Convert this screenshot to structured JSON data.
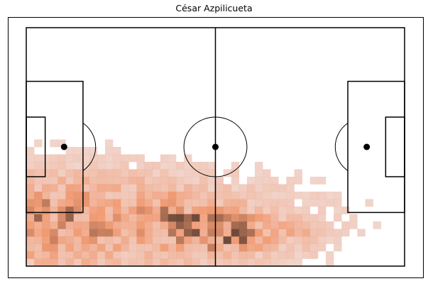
{
  "chart_data": {
    "type": "heatmap",
    "title": "César Azpilicueta",
    "xlabel": "",
    "ylabel": "",
    "grid": false,
    "legend": "none",
    "pitch": {
      "length": 120,
      "width": 80,
      "bins": [
        48,
        32
      ]
    },
    "colors": {
      "low": "#e6b1a0",
      "mid": "#ef8a5c",
      "high": "#6e4a3a",
      "lines": "#000000"
    },
    "density": {
      "peak": 1.0,
      "components": [
        {
          "x": 0,
          "y": 15,
          "sx": 60,
          "sy": 14,
          "w": 1.0
        },
        {
          "x": 65,
          "y": 11,
          "sx": 10,
          "sy": 5,
          "w": 0.75
        },
        {
          "x": 48,
          "y": 18,
          "sx": 8,
          "sy": 6,
          "w": 0.25
        },
        {
          "x": 88,
          "y": 10,
          "sx": 6,
          "sy": 4,
          "w": 0.25
        }
      ]
    }
  }
}
